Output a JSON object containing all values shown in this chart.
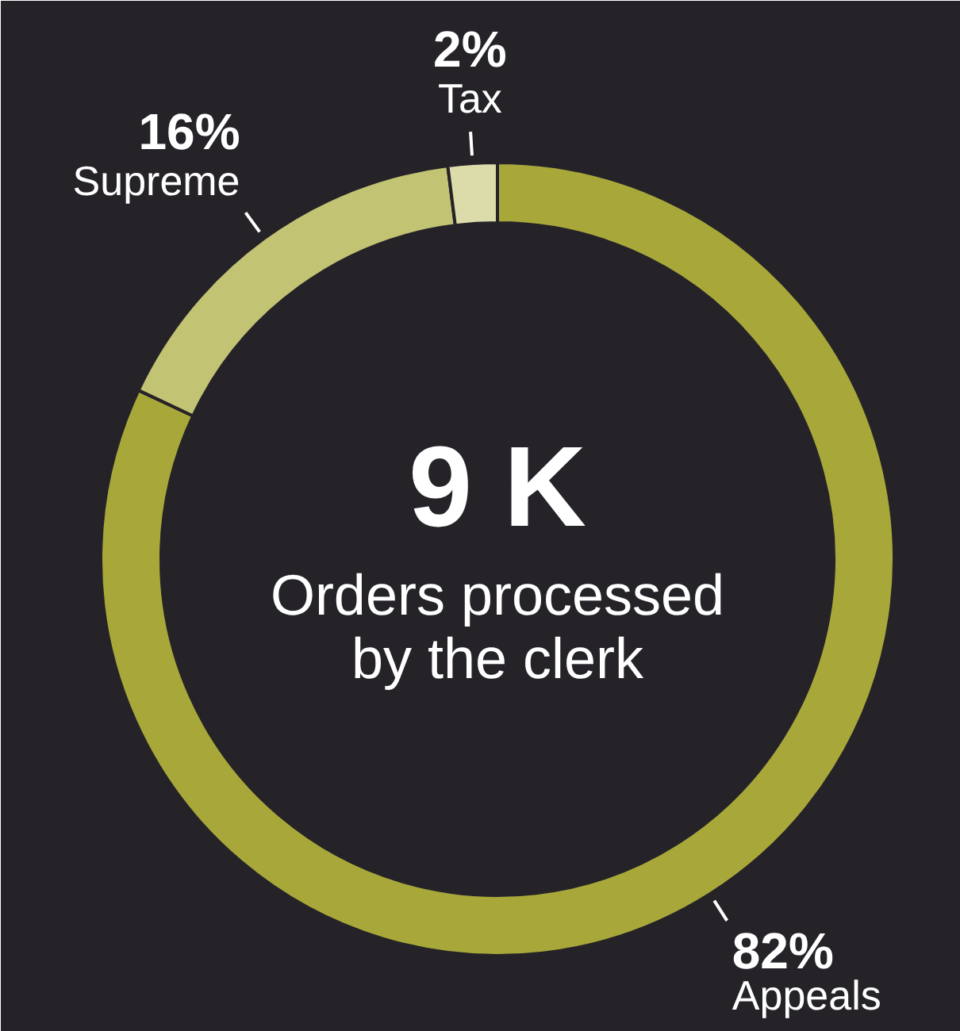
{
  "chart_data": {
    "type": "donut",
    "title": "9 K",
    "subtitle": "Orders processed by the clerk",
    "categories": [
      "Appeals",
      "Supreme",
      "Tax"
    ],
    "values": [
      82,
      16,
      2
    ],
    "colors": [
      "#a8a83a",
      "#c3c374",
      "#dcdcaa"
    ],
    "value_labels": [
      "82%",
      "16%",
      "2%"
    ]
  }
}
